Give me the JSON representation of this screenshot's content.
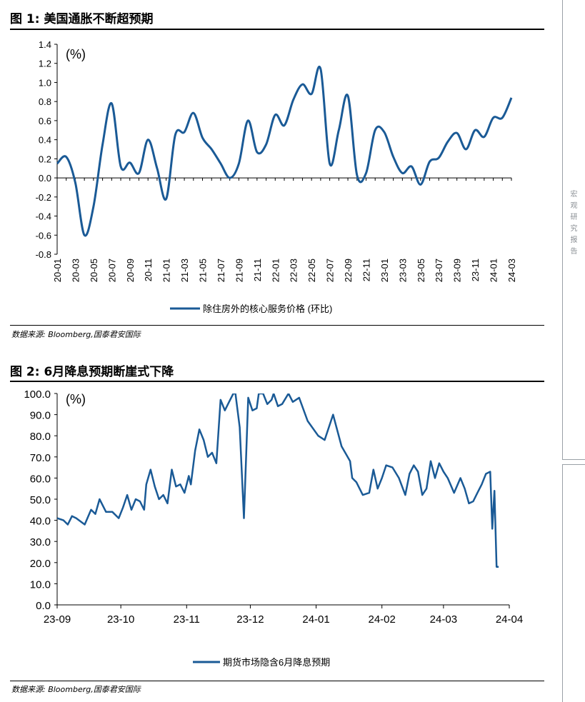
{
  "figure1": {
    "title": "图 1:  美国通胀不断超预期",
    "source": "数据来源:  Bloomberg,国泰君安国际"
  },
  "figure2": {
    "title": "图 2:  6月降息预期断崖式下降",
    "source": "数据来源:  Bloomberg,国泰君安国际"
  },
  "sidebar_text": "宏观研究报告",
  "colors": {
    "line": "#1a5a96",
    "axis": "#000000"
  },
  "chart_data": [
    {
      "type": "line",
      "unit_label": "(%)",
      "xlabel": "",
      "ylabel": "",
      "ylim": [
        -0.8,
        1.4
      ],
      "yticks": [
        -0.8,
        -0.6,
        -0.4,
        -0.2,
        0.0,
        0.2,
        0.4,
        0.6,
        0.8,
        1.0,
        1.2,
        1.4
      ],
      "grid": false,
      "legend_position": "bottom",
      "categories": [
        "20-01",
        "20-02",
        "20-03",
        "20-04",
        "20-05",
        "20-06",
        "20-07",
        "20-08",
        "20-09",
        "20-10",
        "20-11",
        "20-12",
        "21-01",
        "21-02",
        "21-03",
        "21-04",
        "21-05",
        "21-06",
        "21-07",
        "21-08",
        "21-09",
        "21-10",
        "21-11",
        "21-12",
        "22-01",
        "22-02",
        "22-03",
        "22-04",
        "22-05",
        "22-06",
        "22-07",
        "22-08",
        "22-09",
        "22-10",
        "22-11",
        "22-12",
        "23-01",
        "23-02",
        "23-03",
        "23-04",
        "23-05",
        "23-06",
        "23-07",
        "23-08",
        "23-09",
        "23-10",
        "23-11",
        "23-12",
        "24-01",
        "24-02",
        "24-03"
      ],
      "tick_labels": [
        "20-01",
        "20-03",
        "20-05",
        "20-07",
        "20-09",
        "20-11",
        "21-01",
        "21-03",
        "21-05",
        "21-07",
        "21-09",
        "21-11",
        "22-01",
        "22-03",
        "22-05",
        "22-07",
        "22-09",
        "22-11",
        "23-01",
        "23-03",
        "23-05",
        "23-07",
        "23-09",
        "23-11",
        "24-01",
        "24-03"
      ],
      "series": [
        {
          "name": "除住房外的核心服务价格 (环比)",
          "values": [
            0.15,
            0.22,
            -0.05,
            -0.6,
            -0.3,
            0.35,
            0.78,
            0.12,
            0.16,
            0.05,
            0.4,
            0.1,
            -0.22,
            0.45,
            0.48,
            0.68,
            0.42,
            0.3,
            0.15,
            0.0,
            0.15,
            0.6,
            0.27,
            0.35,
            0.66,
            0.55,
            0.82,
            0.98,
            0.88,
            1.14,
            0.15,
            0.5,
            0.86,
            0.03,
            0.05,
            0.5,
            0.48,
            0.22,
            0.05,
            0.12,
            -0.07,
            0.17,
            0.21,
            0.38,
            0.47,
            0.3,
            0.5,
            0.43,
            0.63,
            0.63,
            0.84
          ]
        }
      ]
    },
    {
      "type": "line",
      "unit_label": "(%)",
      "xlabel": "",
      "ylabel": "",
      "ylim": [
        0,
        100
      ],
      "yticks": [
        "0.0",
        "10.0",
        "20.0",
        "30.0",
        "40.0",
        "50.0",
        "60.0",
        "70.0",
        "80.0",
        "90.0",
        "100.0"
      ],
      "grid": false,
      "legend_position": "bottom",
      "xticks": [
        "23-09",
        "23-10",
        "23-11",
        "23-12",
        "24-01",
        "24-02",
        "24-03",
        "24-04"
      ],
      "series": [
        {
          "name": "期货市场隐含6月降息预期",
          "x": [
            "2023-09-01",
            "2023-09-04",
            "2023-09-06",
            "2023-09-08",
            "2023-09-10",
            "2023-09-14",
            "2023-09-17",
            "2023-09-19",
            "2023-09-21",
            "2023-09-24",
            "2023-09-27",
            "2023-09-30",
            "2023-10-02",
            "2023-10-04",
            "2023-10-06",
            "2023-10-08",
            "2023-10-10",
            "2023-10-12",
            "2023-10-13",
            "2023-10-15",
            "2023-10-17",
            "2023-10-19",
            "2023-10-21",
            "2023-10-23",
            "2023-10-25",
            "2023-10-27",
            "2023-10-29",
            "2023-10-31",
            "2023-11-02",
            "2023-11-03",
            "2023-11-05",
            "2023-11-07",
            "2023-11-09",
            "2023-11-11",
            "2023-11-13",
            "2023-11-15",
            "2023-11-17",
            "2023-11-19",
            "2023-11-21",
            "2023-11-23",
            "2023-11-24",
            "2023-11-26",
            "2023-11-28",
            "2023-11-30",
            "2023-12-02",
            "2023-12-04",
            "2023-12-05",
            "2023-12-07",
            "2023-12-09",
            "2023-12-11",
            "2023-12-12",
            "2023-12-14",
            "2023-12-16",
            "2023-12-19",
            "2023-12-21",
            "2023-12-24",
            "2023-12-28",
            "2024-01-02",
            "2024-01-05",
            "2024-01-09",
            "2024-01-13",
            "2024-01-17",
            "2024-01-18",
            "2024-01-20",
            "2024-01-23",
            "2024-01-26",
            "2024-01-28",
            "2024-01-30",
            "2024-02-01",
            "2024-02-03",
            "2024-02-06",
            "2024-02-09",
            "2024-02-12",
            "2024-02-14",
            "2024-02-16",
            "2024-02-18",
            "2024-02-20",
            "2024-02-22",
            "2024-02-24",
            "2024-02-26",
            "2024-02-28",
            "2024-03-01",
            "2024-03-03",
            "2024-03-06",
            "2024-03-09",
            "2024-03-11",
            "2024-03-13",
            "2024-03-15",
            "2024-03-17",
            "2024-03-19",
            "2024-03-21",
            "2024-03-23",
            "2024-03-24",
            "2024-03-25",
            "2024-03-26",
            "2024-03-27"
          ],
          "values": [
            41,
            40,
            38,
            42,
            41,
            38,
            45,
            43,
            50,
            44,
            44,
            41,
            46,
            52,
            45,
            50,
            49,
            45,
            57,
            64,
            56,
            50,
            52,
            48,
            64,
            56,
            57,
            53,
            61,
            57,
            73,
            83,
            78,
            70,
            72,
            67,
            97,
            92,
            96,
            100,
            100,
            84,
            41,
            98,
            92,
            93,
            100,
            100,
            95,
            97,
            100,
            94,
            95,
            100,
            96,
            98,
            87,
            80,
            78,
            90,
            75,
            68,
            60,
            58,
            52,
            53,
            64,
            55,
            60,
            66,
            65,
            60,
            52,
            62,
            66,
            63,
            52,
            55,
            68,
            60,
            67,
            63,
            60,
            53,
            60,
            55,
            48,
            49,
            53,
            57,
            62,
            63,
            36,
            54,
            18,
            18
          ]
        }
      ]
    }
  ]
}
